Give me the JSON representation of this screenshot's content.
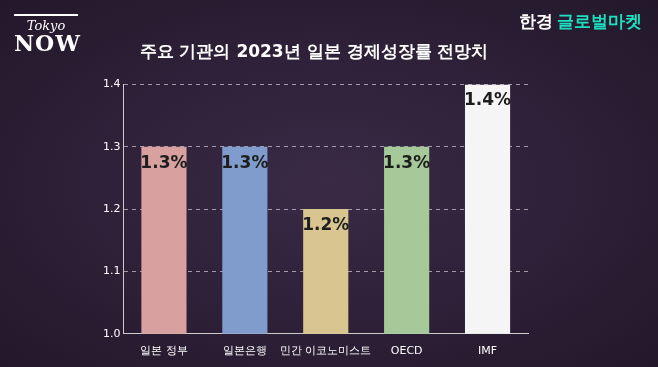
{
  "chart_data": {
    "type": "bar",
    "title": "주요 기관의 2023년 일본 경제성장률 전망치",
    "annotations": [
      "Tokyo",
      "NOW",
      "한경",
      "글로벌마켓"
    ],
    "categories": [
      "일본 정부",
      "일본은행",
      "민간 이코노미스트",
      "OECD",
      "IMF"
    ],
    "values": [
      1.3,
      1.3,
      1.2,
      1.3,
      1.4
    ],
    "value_labels": [
      "1.3%",
      "1.3%",
      "1.2%",
      "1.3%",
      "1.4%"
    ],
    "colors": [
      "#d9a0a0",
      "#7f9ccc",
      "#d8c58f",
      "#a6c99a",
      "#f5f5f5"
    ],
    "ylim": [
      1.0,
      1.4
    ],
    "yticks": [
      {
        "value": 1.0,
        "label": "1.0"
      },
      {
        "value": 1.1,
        "label": "1.1"
      },
      {
        "value": 1.2,
        "label": "1.2"
      },
      {
        "value": 1.3,
        "label": "1.3"
      },
      {
        "value": 1.4,
        "label": "1.4"
      }
    ],
    "grid": true,
    "data_labels": true
  }
}
